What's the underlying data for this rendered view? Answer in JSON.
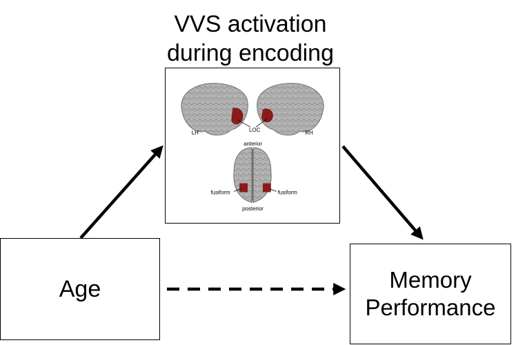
{
  "title": {
    "line1": "VVS activation",
    "line2": "during encoding"
  },
  "nodes": {
    "age": "Age",
    "memory": {
      "line1": "Memory",
      "line2": "Performance"
    }
  },
  "brain_labels": {
    "lh": "LH",
    "rh": "RH",
    "loc": "LOC",
    "anterior": "anterior",
    "posterior": "posterior",
    "fusiform_left": "fusiform",
    "fusiform_right": "fusiform"
  },
  "colors": {
    "activation": "#8b1a1a",
    "brain": "#a9a9a9",
    "arrow": "#000000"
  }
}
